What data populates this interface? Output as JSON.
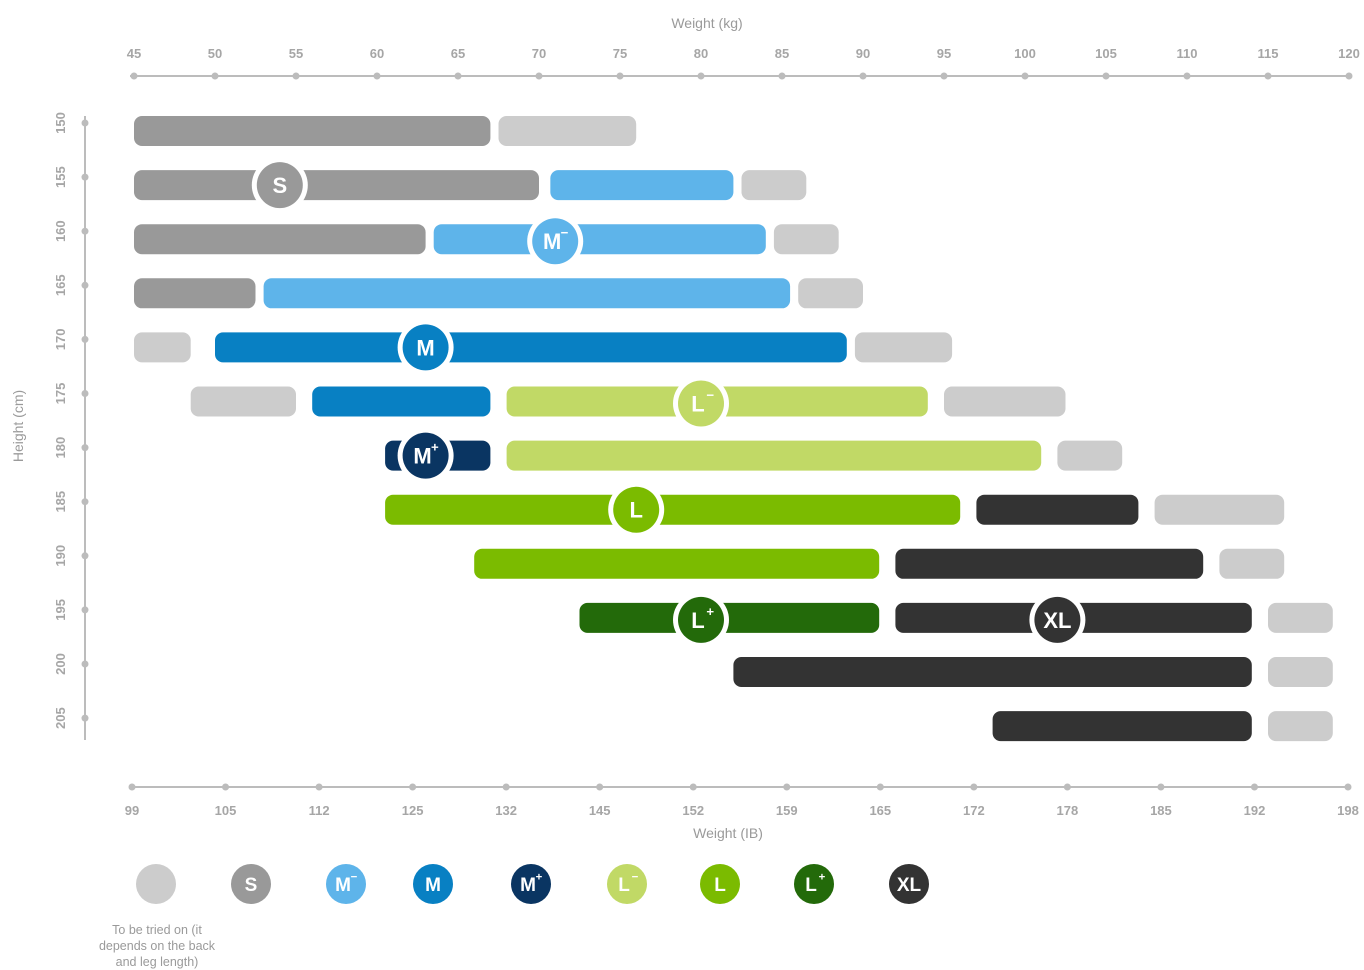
{
  "chart_data": {
    "type": "range-bar",
    "x_top_title": "Weight (kg)",
    "x_bottom_title": "Weight (IB)",
    "y_title": "Height (cm)",
    "x_top_ticks": [
      "45",
      "50",
      "55",
      "60",
      "65",
      "70",
      "75",
      "80",
      "85",
      "90",
      "95",
      "100",
      "105",
      "110",
      "115",
      "120"
    ],
    "x_bottom_ticks": [
      "99",
      "105",
      "112",
      "125",
      "132",
      "145",
      "152",
      "159",
      "165",
      "172",
      "178",
      "185",
      "192",
      "198"
    ],
    "y_ticks": [
      "150",
      "155",
      "160",
      "165",
      "170",
      "175",
      "180",
      "185",
      "190",
      "195",
      "200",
      "205"
    ],
    "xlim_kg": [
      45,
      120
    ],
    "ylim_cm": [
      150,
      205
    ],
    "colors": {
      "try": "#cccccc",
      "S": "#999999",
      "M-": "#5eb4ea",
      "M": "#0880c3",
      "M+": "#0a3562",
      "L-": "#c1d966",
      "L": "#7bbb00",
      "L+": "#236a0a",
      "XL": "#333333",
      "axis": "#bcbcbc"
    },
    "legend": [
      {
        "key": "try",
        "label": ""
      },
      {
        "key": "S",
        "label": "S"
      },
      {
        "key": "M-",
        "label": "M",
        "sup": "−"
      },
      {
        "key": "M",
        "label": "M"
      },
      {
        "key": "M+",
        "label": "M",
        "sup": "+"
      },
      {
        "key": "L-",
        "label": "L",
        "sup": "−"
      },
      {
        "key": "L",
        "label": "L"
      },
      {
        "key": "L+",
        "label": "L",
        "sup": "+"
      },
      {
        "key": "XL",
        "label": "XL"
      }
    ],
    "legend_caption": "To be tried on (it depends on the back and leg length)",
    "rows": [
      {
        "height": 150,
        "segments": [
          {
            "size": "S",
            "from": 45,
            "to": 67
          },
          {
            "size": "try",
            "from": 67.5,
            "to": 76
          }
        ]
      },
      {
        "height": 155,
        "segments": [
          {
            "size": "S",
            "from": 45,
            "to": 70
          },
          {
            "size": "M-",
            "from": 70.7,
            "to": 82
          },
          {
            "size": "try",
            "from": 82.5,
            "to": 86.5
          }
        ]
      },
      {
        "height": 160,
        "segments": [
          {
            "size": "S",
            "from": 45,
            "to": 63
          },
          {
            "size": "M-",
            "from": 63.5,
            "to": 84
          },
          {
            "size": "try",
            "from": 84.5,
            "to": 88.5
          }
        ]
      },
      {
        "height": 165,
        "segments": [
          {
            "size": "S",
            "from": 45,
            "to": 52.5
          },
          {
            "size": "M-",
            "from": 53,
            "to": 85.5
          },
          {
            "size": "try",
            "from": 86,
            "to": 90
          }
        ]
      },
      {
        "height": 170,
        "segments": [
          {
            "size": "try",
            "from": 45,
            "to": 48.5
          },
          {
            "size": "M",
            "from": 50,
            "to": 89
          },
          {
            "size": "try",
            "from": 89.5,
            "to": 95.5
          }
        ]
      },
      {
        "height": 175,
        "segments": [
          {
            "size": "try",
            "from": 48.5,
            "to": 55
          },
          {
            "size": "M",
            "from": 56,
            "to": 67
          },
          {
            "size": "L-",
            "from": 68,
            "to": 94
          },
          {
            "size": "try",
            "from": 95,
            "to": 102.5
          }
        ]
      },
      {
        "height": 180,
        "segments": [
          {
            "size": "M+",
            "from": 60.5,
            "to": 67
          },
          {
            "size": "L-",
            "from": 68,
            "to": 101
          },
          {
            "size": "try",
            "from": 102,
            "to": 106
          }
        ]
      },
      {
        "height": 185,
        "segments": [
          {
            "size": "L",
            "from": 60.5,
            "to": 96
          },
          {
            "size": "XL",
            "from": 97,
            "to": 107
          },
          {
            "size": "try",
            "from": 108,
            "to": 116
          }
        ]
      },
      {
        "height": 190,
        "segments": [
          {
            "size": "L",
            "from": 66,
            "to": 91
          },
          {
            "size": "XL",
            "from": 92,
            "to": 111
          },
          {
            "size": "try",
            "from": 112,
            "to": 116
          }
        ]
      },
      {
        "height": 195,
        "segments": [
          {
            "size": "L+",
            "from": 72.5,
            "to": 91
          },
          {
            "size": "XL",
            "from": 92,
            "to": 114
          },
          {
            "size": "try",
            "from": 115,
            "to": 119
          }
        ]
      },
      {
        "height": 200,
        "segments": [
          {
            "size": "XL",
            "from": 82,
            "to": 114
          },
          {
            "size": "try",
            "from": 115,
            "to": 119
          }
        ]
      },
      {
        "height": 205,
        "segments": [
          {
            "size": "XL",
            "from": 98,
            "to": 114
          },
          {
            "size": "try",
            "from": 115,
            "to": 119
          }
        ]
      }
    ],
    "size_badges": [
      {
        "size": "S",
        "label": "S",
        "weight": 54,
        "height": 155
      },
      {
        "size": "M-",
        "label": "M",
        "sup": "−",
        "weight": 71,
        "height": 160
      },
      {
        "size": "M",
        "label": "M",
        "weight": 63,
        "height": 170
      },
      {
        "size": "L-",
        "label": "L",
        "sup": "−",
        "weight": 80,
        "height": 175
      },
      {
        "size": "M+",
        "label": "M",
        "sup": "+",
        "weight": 63,
        "height": 180
      },
      {
        "size": "L",
        "label": "L",
        "weight": 76,
        "height": 185
      },
      {
        "size": "L+",
        "label": "L",
        "sup": "+",
        "weight": 80,
        "height": 195
      },
      {
        "size": "XL",
        "label": "XL",
        "weight": 102,
        "height": 195
      }
    ]
  }
}
